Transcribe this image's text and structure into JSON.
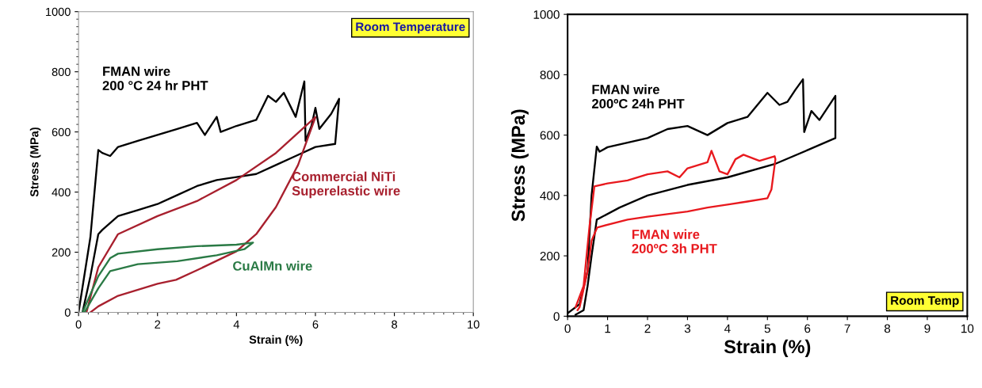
{
  "chart_data": [
    {
      "type": "line",
      "xlabel": "Strain (%)",
      "ylabel": "Stress (MPa)",
      "xlim": [
        0,
        10
      ],
      "ylim": [
        0,
        1000
      ],
      "xticks": [
        0,
        2,
        4,
        6,
        8,
        10
      ],
      "yticks": [
        0,
        200,
        400,
        600,
        800,
        1000
      ],
      "grid": false,
      "legend": false,
      "marker": "none",
      "line_style": "solid",
      "annotations": [
        "Room Temperature"
      ],
      "series": [
        {
          "name": "FMAN wire\n200 °C 24 hr PHT",
          "color": "#000000",
          "x": [
            0,
            0.3,
            0.5,
            0.6,
            0.8,
            1,
            1.5,
            2,
            2.5,
            3,
            3.2,
            3.5,
            3.6,
            4,
            4.5,
            4.8,
            5,
            5.2,
            5.5,
            5.72,
            5.75,
            5.9,
            6,
            6.1,
            6.4,
            6.6,
            6.5,
            6,
            5.5,
            5,
            4.5,
            4,
            3.5,
            3,
            2.5,
            2,
            1.5,
            1,
            0.6,
            0.5,
            0.3,
            0.1
          ],
          "values": [
            0,
            250,
            540,
            530,
            520,
            550,
            570,
            590,
            610,
            630,
            590,
            650,
            600,
            620,
            640,
            720,
            700,
            730,
            650,
            768,
            570,
            620,
            680,
            610,
            660,
            710,
            560,
            550,
            520,
            490,
            460,
            450,
            440,
            420,
            390,
            360,
            340,
            320,
            274,
            260,
            120,
            0
          ]
        },
        {
          "name": "Commercial NiTi\nSuperelastic wire",
          "color": "#a8202e",
          "x": [
            0.2,
            0.5,
            1,
            2,
            3,
            4,
            5,
            6,
            5.56,
            5,
            4.5,
            4,
            3,
            2.47,
            2,
            1,
            0.5,
            0.3
          ],
          "values": [
            0,
            150,
            260,
            320,
            370,
            440,
            530,
            649,
            490,
            350,
            260,
            203,
            140,
            108,
            95,
            55,
            20,
            0
          ]
        },
        {
          "name": "CuAlMn wire",
          "color": "#2a7a45",
          "x": [
            0.1,
            0.5,
            0.8,
            1,
            2,
            3,
            4,
            4.42,
            4.2,
            3.5,
            2.5,
            1.5,
            0.8,
            0.5,
            0.15
          ],
          "values": [
            0,
            120,
            180,
            195,
            210,
            220,
            225,
            232,
            210,
            190,
            170,
            160,
            137,
            80,
            0
          ]
        }
      ]
    },
    {
      "type": "line",
      "xlabel": "Strain (%)",
      "ylabel": "Stress (MPa)",
      "xlim": [
        0,
        10
      ],
      "ylim": [
        0,
        1000
      ],
      "xticks": [
        0,
        1,
        2,
        3,
        4,
        5,
        6,
        7,
        8,
        9,
        10
      ],
      "yticks": [
        0,
        200,
        400,
        600,
        800,
        1000
      ],
      "grid": false,
      "legend": false,
      "marker": "none",
      "line_style": "solid",
      "annotations": [
        "Room Temp"
      ],
      "series": [
        {
          "name": "FMAN wire\n200ºC 24h PHT",
          "color": "#000000",
          "x": [
            0,
            0.3,
            0.5,
            0.6,
            0.73,
            0.8,
            1,
            1.5,
            2,
            2.5,
            3,
            3.5,
            4,
            4.5,
            5,
            5.3,
            5.5,
            5.7,
            5.89,
            5.92,
            6.1,
            6.3,
            6.7,
            6.7,
            6,
            5.18,
            4,
            3,
            2,
            1.3,
            0.73,
            0.6,
            0.5,
            0.4,
            0.2
          ],
          "values": [
            10,
            40,
            150,
            400,
            562,
            545,
            560,
            575,
            590,
            620,
            630,
            600,
            640,
            660,
            740,
            700,
            710,
            750,
            785,
            610,
            680,
            650,
            730,
            590,
            550,
            504,
            460,
            435,
            400,
            360,
            320,
            200,
            100,
            20,
            5
          ]
        },
        {
          "name": "FMAN wire\n200ºC 3h PHT",
          "color": "#e8191e",
          "x": [
            0.2,
            0.4,
            0.55,
            0.67,
            1,
            1.5,
            2,
            2.5,
            2.8,
            3,
            3.5,
            3.6,
            3.8,
            4,
            4.2,
            4.4,
            4.8,
            5.18,
            5.2,
            5.1,
            5,
            4.5,
            4,
            3.5,
            3,
            2,
            1.5,
            0.74,
            0.6,
            0.5,
            0.3,
            0.25
          ],
          "values": [
            30,
            100,
            300,
            430,
            440,
            450,
            470,
            480,
            460,
            490,
            510,
            548,
            480,
            470,
            520,
            535,
            515,
            530,
            520,
            420,
            391,
            380,
            370,
            360,
            347,
            330,
            320,
            294,
            250,
            150,
            30,
            20
          ]
        }
      ]
    }
  ]
}
